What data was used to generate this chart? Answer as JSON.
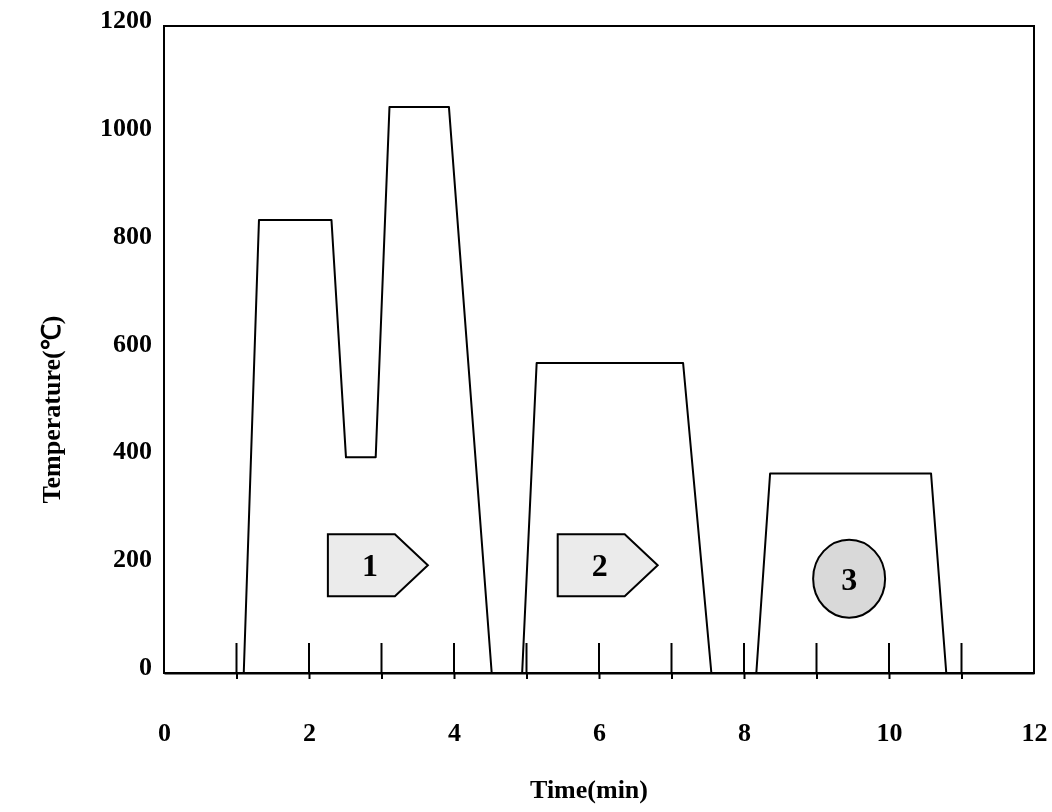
{
  "chart_data": {
    "type": "line",
    "xlabel": "Time(min)",
    "ylabel": "Temperature(℃)",
    "xlim": [
      0,
      12
    ],
    "ylim": [
      0,
      1200
    ],
    "xticks": [
      0,
      {
        "value": 1,
        "label": null
      },
      2,
      {
        "value": 3,
        "label": null
      },
      4,
      {
        "value": 5,
        "label": null
      },
      6,
      {
        "value": 7,
        "label": null
      },
      8,
      {
        "value": 9,
        "label": null
      },
      10,
      {
        "value": 11,
        "label": null
      },
      12
    ],
    "yticks": [
      0,
      200,
      400,
      600,
      800,
      1000,
      1200
    ],
    "series": [
      {
        "color": "#000000",
        "x": [
          1.1,
          1.31,
          2.31,
          2.51,
          2.92,
          3.11,
          3.93,
          4.52,
          4.7,
          4.94,
          5.14,
          7.16,
          7.55,
          7.9,
          8.17,
          8.36,
          10.58,
          10.79
        ],
        "values": [
          0,
          840,
          840,
          400,
          400,
          1050,
          1050,
          0,
          null,
          0,
          575,
          575,
          0,
          null,
          0,
          370,
          370,
          0
        ]
      }
    ],
    "annotations": [
      "1",
      "2",
      "3"
    ],
    "line_style": "solid",
    "marker": "none"
  }
}
